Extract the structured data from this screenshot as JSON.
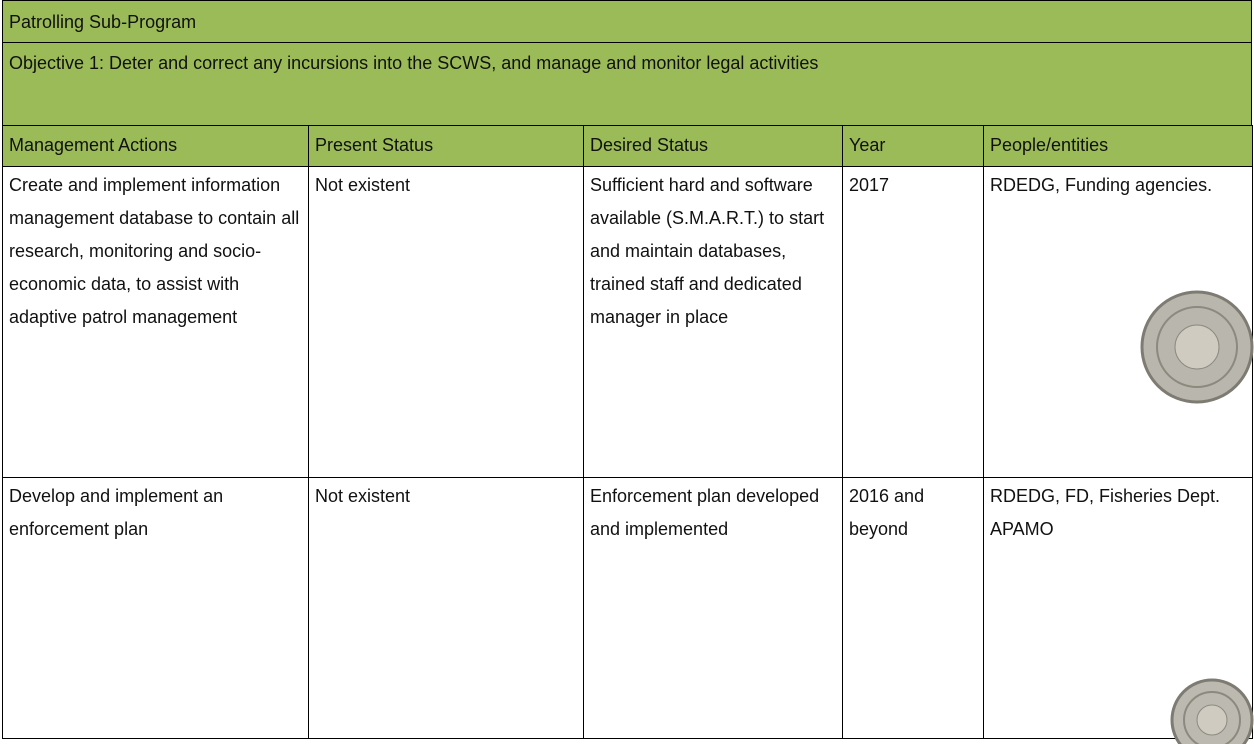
{
  "header": {
    "title": "Patrolling Sub-Program",
    "objective": "Objective 1: Deter and correct any incursions into the SCWS, and manage and monitor legal activities"
  },
  "table": {
    "columns": [
      "Management Actions",
      "Present Status",
      "Desired Status",
      "Year",
      "People/entities"
    ],
    "rows": [
      [
        "Create and implement information management database to contain all research, monitoring and socio-economic data, to assist with adaptive patrol management",
        "Not existent",
        "Sufficient hard and software available (S.M.A.R.T.) to start and maintain databases, trained staff and dedicated manager in place",
        "2017",
        "RDEDG, Funding agencies."
      ],
      [
        "Develop and implement an enforcement plan",
        "Not existent",
        "Enforcement plan developed and implemented",
        "2016 and beyond",
        "RDEDG, FD, Fisheries Dept. APAMO"
      ]
    ]
  }
}
